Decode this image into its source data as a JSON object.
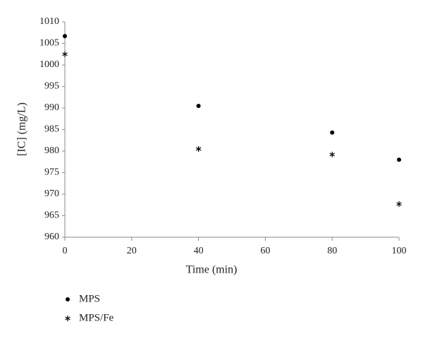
{
  "chart_data": {
    "type": "scatter",
    "x_label": "Time (min)",
    "y_label": "[IC] (mg/L)",
    "series": [
      {
        "name": "MPS",
        "color": "#000000",
        "marker": "circle",
        "x": [
          0,
          40,
          80,
          100
        ],
        "values": [
          1006.7,
          990.5,
          984.3,
          978.0
        ]
      },
      {
        "name": "MPS/Fe",
        "color": "#000000",
        "marker": "asterisk",
        "x": [
          0,
          40,
          80,
          100
        ],
        "values": [
          1002.5,
          980.5,
          979.2,
          967.7
        ]
      }
    ],
    "xlim": [
      0,
      100
    ],
    "xticks": [
      0,
      20,
      40,
      60,
      80,
      100
    ],
    "ylim": [
      960,
      1010
    ],
    "yticks": [
      960,
      965,
      970,
      975,
      980,
      985,
      990,
      995,
      1000,
      1005,
      1010
    ],
    "grid": false,
    "legend": "bottom-left"
  }
}
